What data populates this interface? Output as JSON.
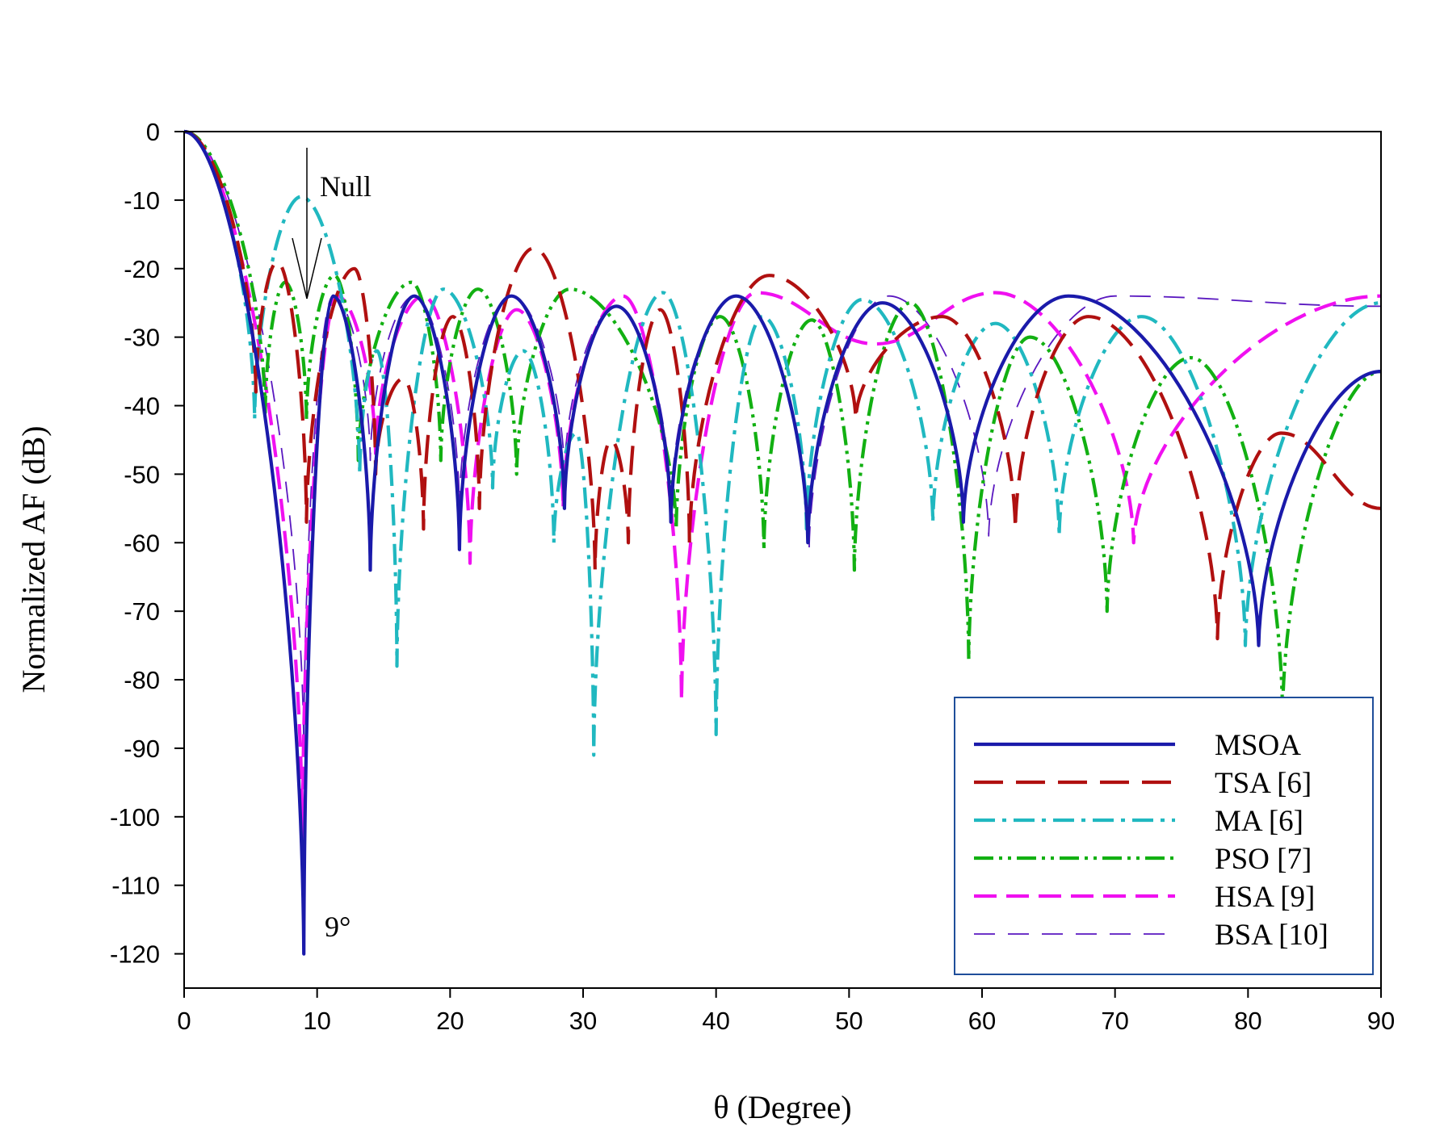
{
  "chart_data": {
    "type": "line",
    "title": "",
    "xlabel": "θ (Degree)",
    "ylabel": "Normalized AF (dB)",
    "xlim": [
      0,
      90
    ],
    "ylim": [
      -125,
      0
    ],
    "xticks": [
      0,
      10,
      20,
      30,
      40,
      50,
      60,
      70,
      80,
      90
    ],
    "yticks": [
      0,
      -10,
      -20,
      -30,
      -40,
      -50,
      -60,
      -70,
      -80,
      -90,
      -100,
      -110,
      -120
    ],
    "grid": false,
    "legend_position": "bottom-right",
    "annotations": [
      {
        "text": "Null",
        "x": 9.2,
        "y": -24,
        "kind": "arrow"
      },
      {
        "text": "9°",
        "x": 9,
        "y": -120
      }
    ],
    "series": [
      {
        "name": "MSOA",
        "color": "#1a1aaa",
        "style": "solid",
        "nulls": [
          [
            9.0,
            -120
          ],
          [
            14.0,
            -64
          ],
          [
            20.7,
            -61
          ],
          [
            28.6,
            -55
          ],
          [
            36.6,
            -57
          ],
          [
            46.9,
            -60
          ],
          [
            58.6,
            -57
          ],
          [
            80.8,
            -75
          ]
        ],
        "peaks": [
          [
            0,
            0
          ],
          [
            11.2,
            -24
          ],
          [
            17.3,
            -24
          ],
          [
            24.6,
            -24
          ],
          [
            32.5,
            -25.5
          ],
          [
            41.5,
            -24
          ],
          [
            52.5,
            -25
          ],
          [
            66.5,
            -24
          ],
          [
            90,
            -35
          ]
        ]
      },
      {
        "name": "TSA [6]",
        "color": "#b01010",
        "style": "long-dash",
        "nulls": [
          [
            5.4,
            -38
          ],
          [
            9.2,
            -57
          ],
          [
            14.4,
            -50
          ],
          [
            18.0,
            -58
          ],
          [
            22.2,
            -55
          ],
          [
            30.9,
            -64
          ],
          [
            33.4,
            -60
          ],
          [
            38.0,
            -60
          ],
          [
            50.5,
            -42
          ],
          [
            62.5,
            -58
          ],
          [
            77.7,
            -74
          ]
        ],
        "peaks": [
          [
            0,
            0
          ],
          [
            7.0,
            -19
          ],
          [
            12.8,
            -20
          ],
          [
            16.5,
            -36
          ],
          [
            20.2,
            -27
          ],
          [
            26.3,
            -17
          ],
          [
            32.1,
            -45
          ],
          [
            35.8,
            -26
          ],
          [
            44.0,
            -21
          ],
          [
            57.0,
            -27
          ],
          [
            68.0,
            -27
          ],
          [
            82.5,
            -44
          ],
          [
            90,
            -55
          ]
        ]
      },
      {
        "name": "MA [6]",
        "color": "#20b8c0",
        "style": "dash-dot",
        "nulls": [
          [
            5.3,
            -42
          ],
          [
            13.2,
            -50
          ],
          [
            16.0,
            -78
          ],
          [
            23.2,
            -52
          ],
          [
            27.8,
            -60
          ],
          [
            30.8,
            -91
          ],
          [
            40.0,
            -88
          ],
          [
            46.8,
            -58
          ],
          [
            56.3,
            -57
          ],
          [
            65.8,
            -59
          ],
          [
            79.8,
            -75
          ]
        ],
        "peaks": [
          [
            0,
            0
          ],
          [
            8.8,
            -9.5
          ],
          [
            14.5,
            -32
          ],
          [
            19.5,
            -23
          ],
          [
            25.5,
            -32
          ],
          [
            29.5,
            -44
          ],
          [
            36.0,
            -23.5
          ],
          [
            43.5,
            -27
          ],
          [
            51.0,
            -24.5
          ],
          [
            61.0,
            -28
          ],
          [
            72.0,
            -27
          ],
          [
            90,
            -25
          ]
        ]
      },
      {
        "name": "PSO [7]",
        "color": "#12b012",
        "style": "dash-dot-dot",
        "nulls": [
          [
            6.1,
            -41
          ],
          [
            9.2,
            -42
          ],
          [
            13.1,
            -48
          ],
          [
            19.3,
            -48
          ],
          [
            25.0,
            -50
          ],
          [
            37.0,
            -58
          ],
          [
            43.6,
            -61
          ],
          [
            50.4,
            -64
          ],
          [
            59.0,
            -77
          ],
          [
            69.4,
            -70
          ],
          [
            82.6,
            -85
          ]
        ],
        "peaks": [
          [
            0,
            0
          ],
          [
            7.6,
            -22
          ],
          [
            11.3,
            -21
          ],
          [
            17.1,
            -22
          ],
          [
            22.1,
            -23
          ],
          [
            29.0,
            -23
          ],
          [
            40.3,
            -27
          ],
          [
            47.2,
            -27.5
          ],
          [
            54.6,
            -25
          ],
          [
            63.6,
            -30
          ],
          [
            75.7,
            -33
          ],
          [
            90,
            -35
          ]
        ]
      },
      {
        "name": "HSA [9]",
        "color": "#f010f0",
        "style": "dash",
        "nulls": [
          [
            8.9,
            -103
          ],
          [
            14.4,
            -47
          ],
          [
            21.5,
            -63
          ],
          [
            28.5,
            -55
          ],
          [
            37.4,
            -83
          ],
          [
            71.4,
            -60
          ]
        ],
        "peaks": [
          [
            0,
            0
          ],
          [
            11.5,
            -24
          ],
          [
            18.0,
            -24
          ],
          [
            25.0,
            -26
          ],
          [
            33.0,
            -24
          ],
          [
            43.0,
            -23.5
          ],
          [
            52.0,
            -31
          ],
          [
            61.0,
            -23.5
          ],
          [
            90,
            -24
          ]
        ]
      },
      {
        "name": "BSA [10]",
        "color": "#5a18c0",
        "style": "thin-dash",
        "nulls": [
          [
            9.0,
            -90
          ],
          [
            14.0,
            -48
          ],
          [
            20.7,
            -55
          ],
          [
            28.6,
            -50
          ],
          [
            36.6,
            -55
          ],
          [
            47.0,
            -61
          ],
          [
            60.5,
            -59
          ]
        ],
        "peaks": [
          [
            0,
            0
          ],
          [
            11.2,
            -24
          ],
          [
            17.3,
            -24
          ],
          [
            24.6,
            -24
          ],
          [
            32.5,
            -25.5
          ],
          [
            41.5,
            -24
          ],
          [
            53.0,
            -24
          ],
          [
            70.0,
            -24
          ],
          [
            90,
            -25.5
          ]
        ]
      }
    ]
  }
}
